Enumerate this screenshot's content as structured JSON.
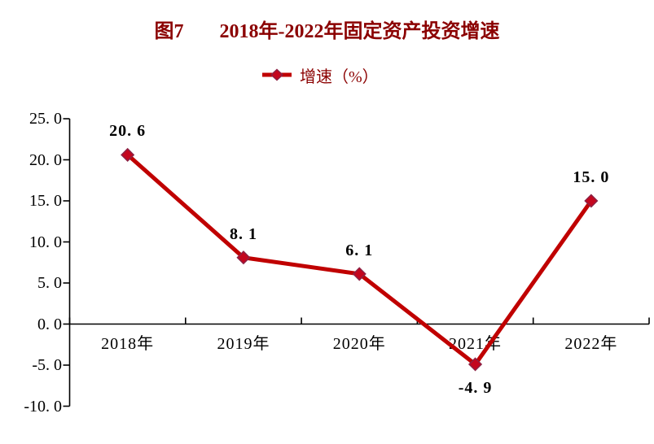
{
  "header": {
    "title_prefix": "图7",
    "title": "2018年-2022年固定资产投资增速"
  },
  "legend": {
    "label": "增速（%）"
  },
  "chart_data": {
    "type": "line",
    "title": "图7 2018年-2022年固定资产投资增速",
    "legend_entries": [
      "增速（%）"
    ],
    "legend_position": "top-center",
    "categories": [
      "2018年",
      "2019年",
      "2020年",
      "2021年",
      "2022年"
    ],
    "series": [
      {
        "name": "增速（%）",
        "values": [
          20.6,
          8.1,
          6.1,
          -4.9,
          15.0
        ]
      }
    ],
    "point_labels": [
      "20. 6",
      "8. 1",
      "6. 1",
      "-4. 9",
      "15. 0"
    ],
    "point_label_placement": [
      "above",
      "above",
      "above",
      "below",
      "above"
    ],
    "xlabel": "",
    "ylabel": "",
    "ylim": [
      -10,
      25
    ],
    "y_step": 5,
    "y_tick_labels": [
      "25. 0",
      "20. 0",
      "15. 0",
      "10. 0",
      "5. 0",
      "0. 0",
      "-5. 0",
      "-10. 0"
    ],
    "grid": false,
    "marker": "diamond",
    "colors": {
      "line": "#c00000",
      "marker_fill": "#c4061e",
      "marker_border": "#8d2144",
      "title_text": "#8b0000",
      "axis": "#000000",
      "tick_label": "#000000",
      "data_label": "#000000"
    }
  }
}
